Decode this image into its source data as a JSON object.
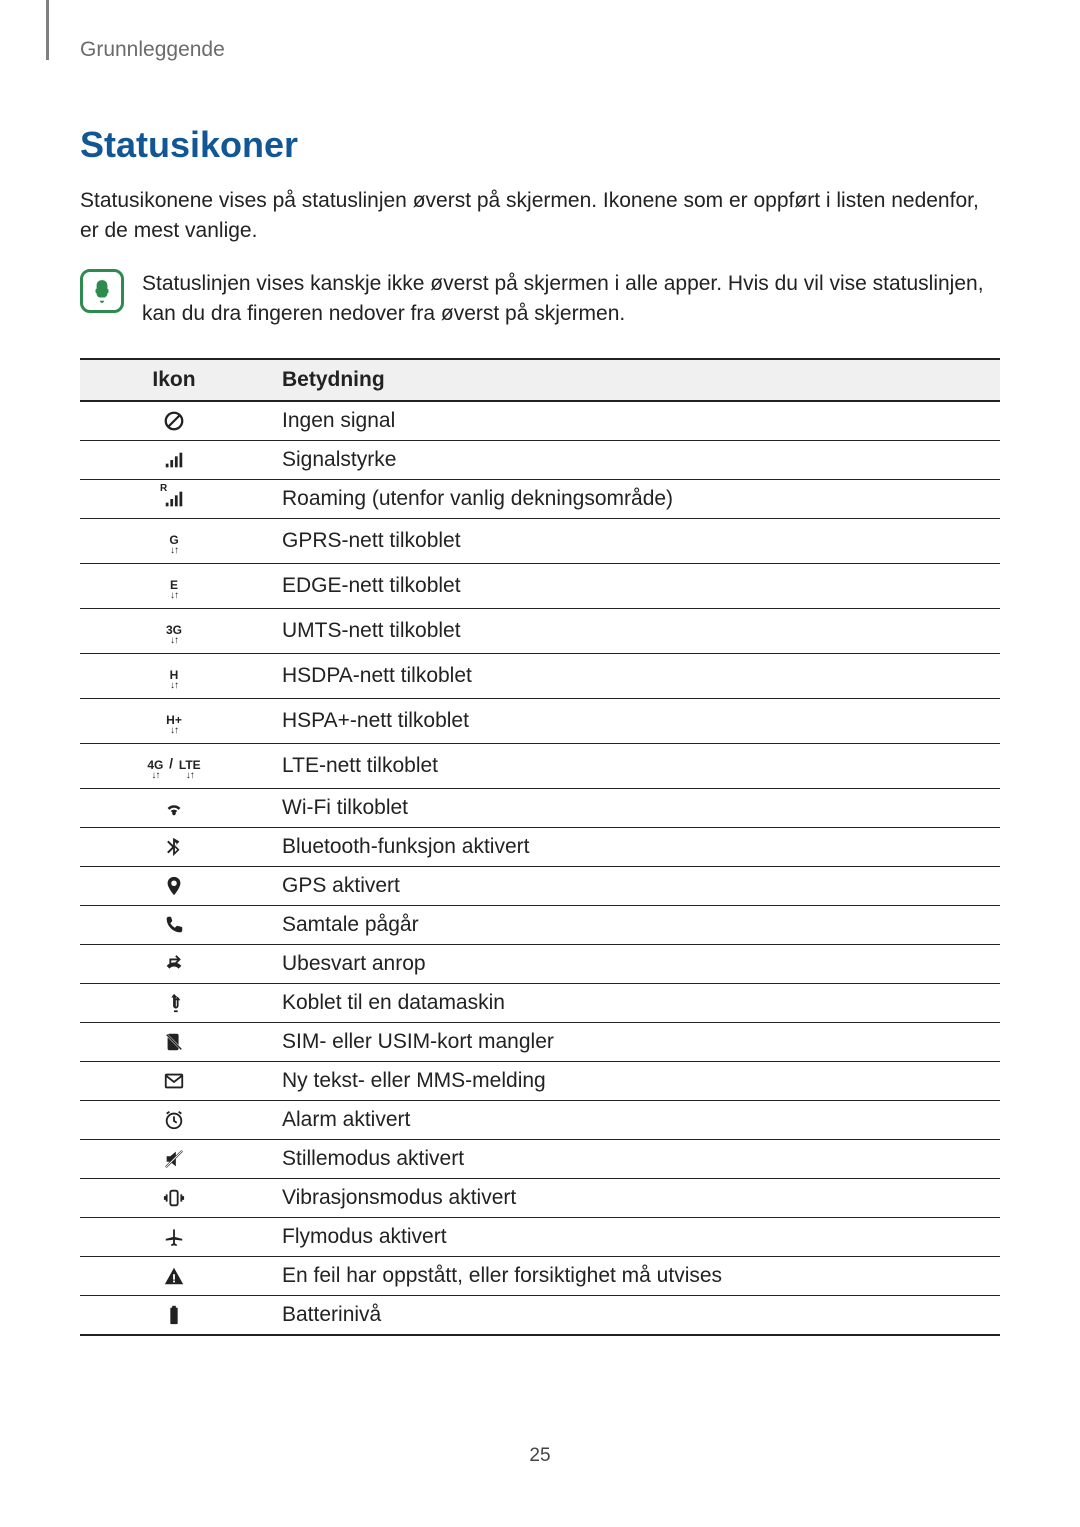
{
  "breadcrumb": "Grunnleggende",
  "heading": "Statusikoner",
  "intro": "Statusikonene vises på statuslinjen øverst på skjermen. Ikonene som er oppført i listen nedenfor, er de mest vanlige.",
  "note": "Statuslinjen vises kanskje ikke øverst på skjermen i alle apper. Hvis du vil vise statuslinjen, kan du dra fingeren nedover fra øverst på skjermen.",
  "table": {
    "header_icon": "Ikon",
    "header_meaning": "Betydning",
    "rows": [
      {
        "icon": "no-signal",
        "meaning": "Ingen signal"
      },
      {
        "icon": "signal",
        "meaning": "Signalstyrke"
      },
      {
        "icon": "roaming",
        "meaning": "Roaming (utenfor vanlig dekningsområde)"
      },
      {
        "icon": "gprs",
        "meaning": "GPRS-nett tilkoblet"
      },
      {
        "icon": "edge",
        "meaning": "EDGE-nett tilkoblet"
      },
      {
        "icon": "umts",
        "meaning": "UMTS-nett tilkoblet"
      },
      {
        "icon": "hsdpa",
        "meaning": "HSDPA-nett tilkoblet"
      },
      {
        "icon": "hspa",
        "meaning": "HSPA+-nett tilkoblet"
      },
      {
        "icon": "lte",
        "meaning": "LTE-nett tilkoblet"
      },
      {
        "icon": "wifi",
        "meaning": "Wi-Fi tilkoblet"
      },
      {
        "icon": "bluetooth",
        "meaning": "Bluetooth-funksjon aktivert"
      },
      {
        "icon": "gps",
        "meaning": "GPS aktivert"
      },
      {
        "icon": "call",
        "meaning": "Samtale pågår"
      },
      {
        "icon": "missed-call",
        "meaning": "Ubesvart anrop"
      },
      {
        "icon": "usb",
        "meaning": "Koblet til en datamaskin"
      },
      {
        "icon": "no-sim",
        "meaning": "SIM- eller USIM-kort mangler"
      },
      {
        "icon": "message",
        "meaning": "Ny tekst- eller MMS-melding"
      },
      {
        "icon": "alarm",
        "meaning": "Alarm aktivert"
      },
      {
        "icon": "mute",
        "meaning": "Stillemodus aktivert"
      },
      {
        "icon": "vibrate",
        "meaning": "Vibrasjonsmodus aktivert"
      },
      {
        "icon": "airplane",
        "meaning": "Flymodus aktivert"
      },
      {
        "icon": "warning",
        "meaning": "En feil har oppstått, eller forsiktighet må utvises"
      },
      {
        "icon": "battery",
        "meaning": "Batterinivå"
      }
    ]
  },
  "icon_text_labels": {
    "gprs": "G",
    "edge": "E",
    "umts": "3G",
    "hsdpa": "H",
    "hspa": "H+",
    "lte_4g": "4G",
    "lte_sep": "/",
    "lte_lte": "LTE",
    "roaming_r": "R"
  },
  "colors": {
    "heading": "#115796",
    "note_border": "#2e8b4f",
    "text": "#222222",
    "header_bg": "#f0f0f0",
    "breadcrumb": "#6b6b6b"
  },
  "page_number": "25"
}
